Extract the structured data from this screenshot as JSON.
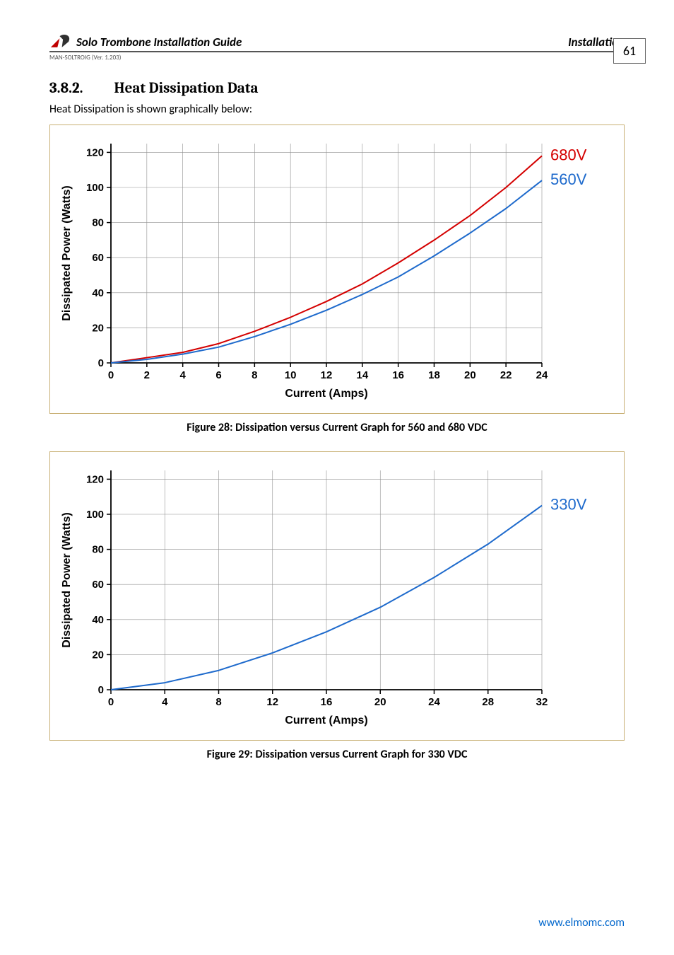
{
  "header": {
    "doc_title": "Solo Trombone Installation Guide",
    "chapter": "Installation",
    "doc_code": "MAN-SOLTROIG (Ver. 1.203)",
    "page_number": "61"
  },
  "section": {
    "number": "3.8.2.",
    "title": "Heat Dissipation Data",
    "intro": "Heat Dissipation is shown graphically below:"
  },
  "chart1": {
    "type": "line",
    "xlabel": "Current (Amps)",
    "ylabel": "Dissipated Power (Watts)",
    "xlim": [
      0,
      24
    ],
    "ylim": [
      0,
      125
    ],
    "xtick_step": 2,
    "ytick_step": 20,
    "xtick_labels": [
      "0",
      "2",
      "4",
      "6",
      "8",
      "10",
      "12",
      "14",
      "16",
      "18",
      "20",
      "22",
      "24"
    ],
    "ytick_labels": [
      "0",
      "20",
      "40",
      "60",
      "80",
      "100",
      "120"
    ],
    "label_fontsize": 16,
    "tick_fontsize": 15,
    "axis_color": "#000000",
    "grid_color": "#909090",
    "background_color": "#ffffff",
    "line_width": 2,
    "legend_position": "right",
    "legend_fontsize": 22,
    "series": [
      {
        "name": "680V",
        "color": "#d40000",
        "x": [
          0,
          2,
          4,
          6,
          8,
          10,
          12,
          14,
          16,
          18,
          20,
          22,
          24
        ],
        "y": [
          0,
          3,
          6,
          11,
          18,
          26,
          35,
          45,
          57,
          70,
          84,
          100,
          118
        ]
      },
      {
        "name": "560V",
        "color": "#1e6acc",
        "x": [
          0,
          2,
          4,
          6,
          8,
          10,
          12,
          14,
          16,
          18,
          20,
          22,
          24
        ],
        "y": [
          0,
          2,
          5,
          9,
          15,
          22,
          30,
          39,
          49,
          61,
          74,
          88,
          104
        ]
      }
    ]
  },
  "caption1": "Figure 28: Dissipation versus Current Graph for 560 and 680 VDC",
  "chart2": {
    "type": "line",
    "xlabel": "Current (Amps)",
    "ylabel": "Dissipated Power (Watts)",
    "xlim": [
      0,
      32
    ],
    "ylim": [
      0,
      125
    ],
    "xtick_step": 4,
    "ytick_step": 20,
    "xtick_labels": [
      "0",
      "4",
      "8",
      "12",
      "16",
      "20",
      "24",
      "28",
      "32"
    ],
    "ytick_labels": [
      "0",
      "20",
      "40",
      "60",
      "80",
      "100",
      "120"
    ],
    "label_fontsize": 16,
    "tick_fontsize": 15,
    "axis_color": "#000000",
    "grid_color": "#909090",
    "background_color": "#ffffff",
    "line_width": 2,
    "legend_position": "right",
    "legend_fontsize": 22,
    "series": [
      {
        "name": "330V",
        "color": "#1e6acc",
        "x": [
          0,
          4,
          8,
          12,
          16,
          20,
          24,
          28,
          32
        ],
        "y": [
          0,
          4,
          11,
          21,
          33,
          47,
          64,
          83,
          105
        ]
      }
    ]
  },
  "caption2": "Figure 29: Dissipation versus Current Graph for 330 VDC",
  "footer": {
    "url": "www.elmomc.com"
  }
}
